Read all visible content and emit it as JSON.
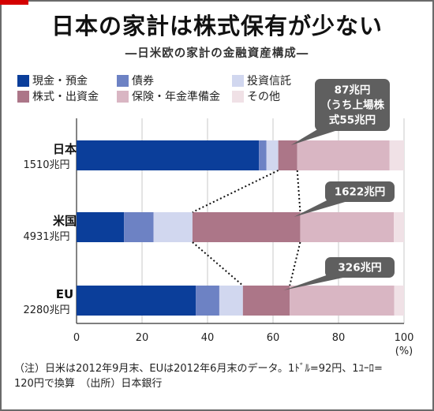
{
  "title": "日本の家計は株式保有が少ない",
  "subtitle": "―日米欧の家計の金融資産構成―",
  "colors": {
    "cash_deposits": "#0b3e9a",
    "bonds": "#6d82c4",
    "investment_trusts": "#d1d7ef",
    "equities": "#ac7688",
    "insurance_pension": "#d9b6c3",
    "other": "#f0e1e6",
    "callout": "#5f5f5f",
    "frame": "#6a6a6a",
    "accent": "#d40000"
  },
  "chart_data": {
    "type": "bar",
    "orientation": "horizontal",
    "stacked": true,
    "unit_label": "(%)",
    "xlim": [
      0,
      100
    ],
    "x_ticks": [
      "0",
      "20",
      "40",
      "60",
      "80",
      "100"
    ],
    "categories": [
      {
        "name": "日本",
        "total": "1510兆円"
      },
      {
        "name": "米国",
        "total": "4931兆円"
      },
      {
        "name": "EU",
        "total": "2280兆円"
      }
    ],
    "series": [
      {
        "name": "現金・預金",
        "key": "cash_deposits",
        "values": [
          55.7,
          14.5,
          36.4
        ]
      },
      {
        "name": "債券",
        "key": "bonds",
        "values": [
          2.3,
          9.0,
          7.2
        ]
      },
      {
        "name": "投資信託",
        "key": "investment_trusts",
        "values": [
          3.6,
          11.9,
          7.2
        ]
      },
      {
        "name": "株式・出資金",
        "key": "equities",
        "values": [
          5.8,
          32.9,
          14.3
        ]
      },
      {
        "name": "保険・年金準備金",
        "key": "insurance_pension",
        "values": [
          28.2,
          28.6,
          31.9
        ]
      },
      {
        "name": "その他",
        "key": "other",
        "values": [
          4.4,
          3.1,
          3.0
        ]
      }
    ],
    "callouts": [
      {
        "lines": [
          "87兆円",
          "（うち上場株",
          "式55兆円"
        ],
        "category": "日本"
      },
      {
        "lines": [
          "1622兆円"
        ],
        "category": "米国"
      },
      {
        "lines": [
          "326兆円"
        ],
        "category": "EU"
      }
    ],
    "grid": true,
    "legend_position": "top"
  },
  "note": {
    "line1": "（注）日米は2012年9月末、EUは2012年6月末のデータ。1ﾄﾞﾙ=92円、1ﾕｰﾛ=",
    "line2": "120円で換算　（出所）日本銀行"
  }
}
